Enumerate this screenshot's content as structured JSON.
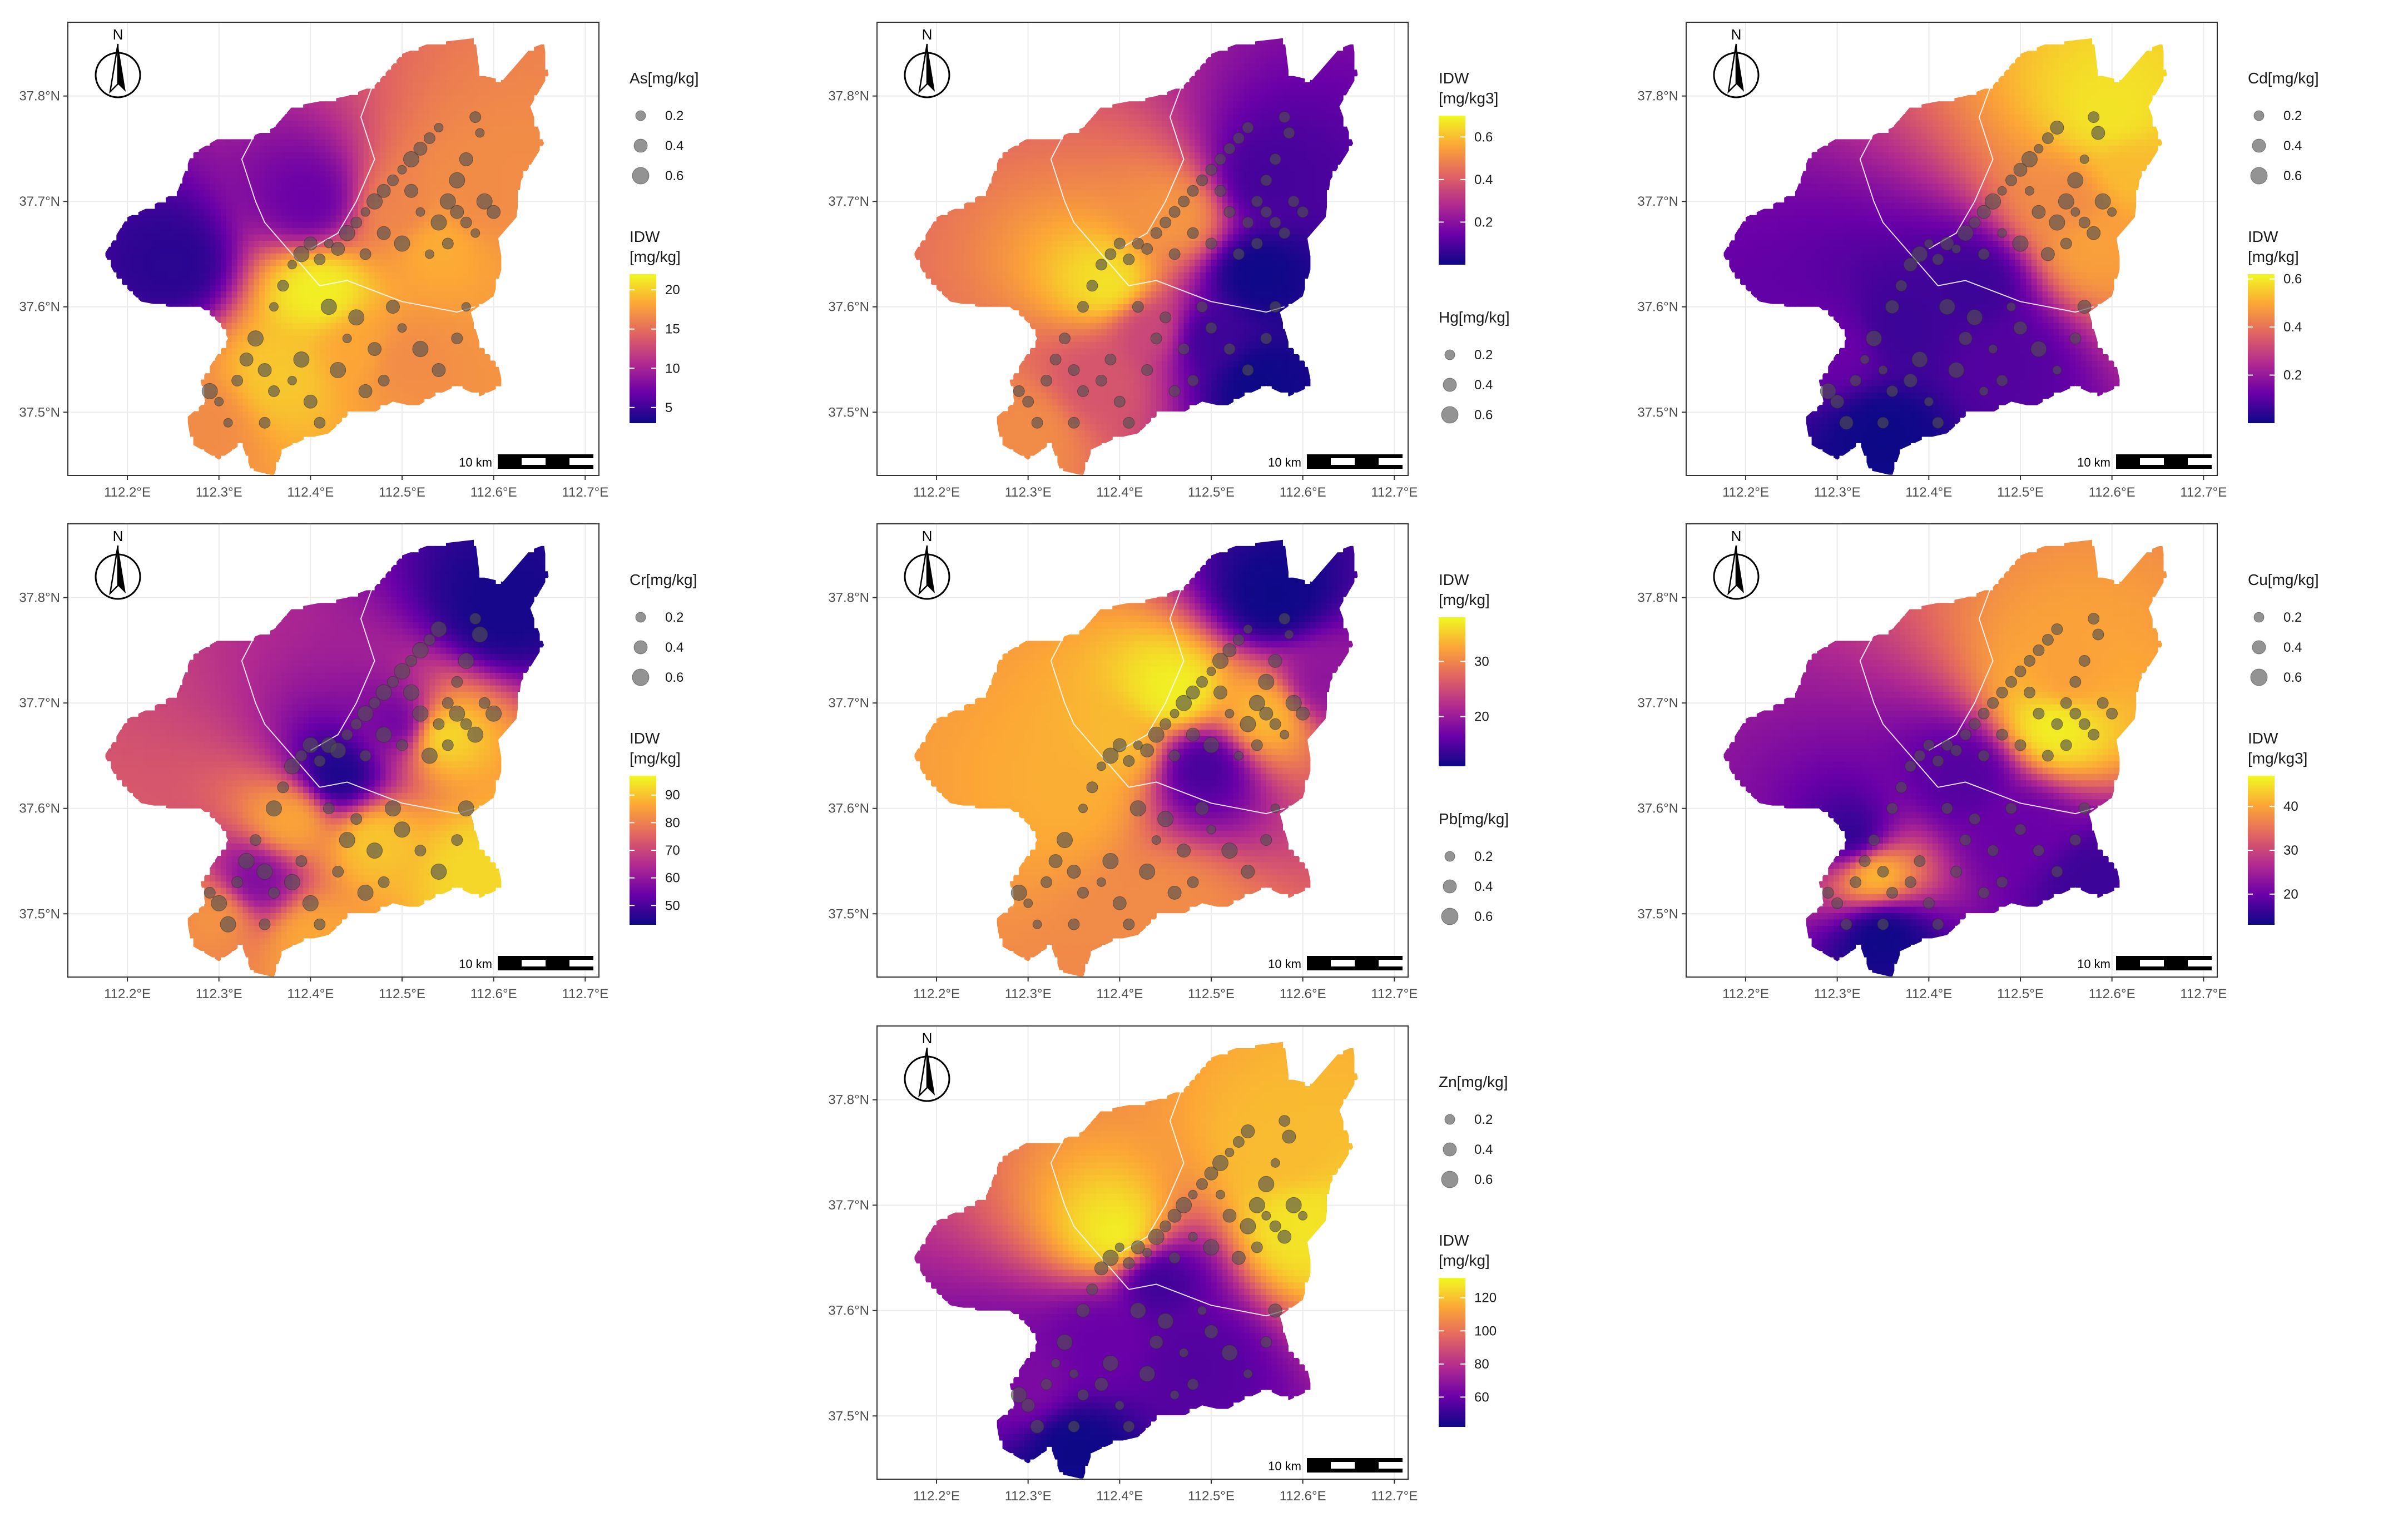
{
  "figure": {
    "type": "idw-interpolation-map-grid",
    "colormap": [
      "#0d0887",
      "#6a00a8",
      "#b12a90",
      "#e16462",
      "#fca636",
      "#f0f921"
    ],
    "dot_color": "#505050",
    "north_label": "N",
    "scalebar_label": "10 km",
    "lon_ticks": [
      "112.2°E",
      "112.3°E",
      "112.4°E",
      "112.5°E",
      "112.6°E",
      "112.7°E"
    ],
    "lat_ticks": [
      "37.5°N",
      "37.6°N",
      "37.7°N",
      "37.8°N"
    ],
    "size_legend_values": [
      "0.2",
      "0.4",
      "0.6"
    ]
  },
  "chart_data": [
    {
      "type": "heatmap",
      "element": "As",
      "size_legend_title": "As[mg/kg]",
      "fill_legend_title_lines": [
        "IDW",
        "[mg/kg]"
      ],
      "fill_ticks": [
        5,
        10,
        15,
        20
      ],
      "fill_range": [
        3,
        22
      ],
      "legend_order": "size-first",
      "hotspots": [
        {
          "lon": 112.41,
          "lat": 37.615,
          "v": 0.98
        },
        {
          "lon": 112.37,
          "lat": 37.535,
          "v": 0.88
        },
        {
          "lon": 112.45,
          "lat": 37.56,
          "v": 0.8
        },
        {
          "lon": 112.54,
          "lat": 37.66,
          "v": 0.82
        },
        {
          "lon": 112.5,
          "lat": 37.69,
          "v": 0.7
        },
        {
          "lon": 112.58,
          "lat": 37.7,
          "v": 0.72
        },
        {
          "lon": 112.5,
          "lat": 37.55,
          "v": 0.72
        },
        {
          "lon": 112.28,
          "lat": 37.49,
          "v": 0.72
        },
        {
          "lon": 112.25,
          "lat": 37.64,
          "v": 0.06
        },
        {
          "lon": 112.4,
          "lat": 37.7,
          "v": 0.2
        }
      ]
    },
    {
      "type": "heatmap",
      "element": "Hg",
      "size_legend_title": "Hg[mg/kg]",
      "fill_legend_title_lines": [
        "IDW",
        "[mg/kg3]"
      ],
      "fill_ticks": [
        0.2,
        0.4,
        0.6
      ],
      "fill_range": [
        0.0,
        0.7
      ],
      "legend_order": "fill-first",
      "hotspots": [
        {
          "lon": 112.39,
          "lat": 37.62,
          "v": 0.95
        },
        {
          "lon": 112.46,
          "lat": 37.685,
          "v": 0.75
        },
        {
          "lon": 112.3,
          "lat": 37.48,
          "v": 0.72
        },
        {
          "lon": 112.43,
          "lat": 37.58,
          "v": 0.5
        },
        {
          "lon": 112.38,
          "lat": 37.53,
          "v": 0.55
        },
        {
          "lon": 112.55,
          "lat": 37.63,
          "v": 0.0
        },
        {
          "lon": 112.55,
          "lat": 37.53,
          "v": 0.0
        },
        {
          "lon": 112.5,
          "lat": 37.57,
          "v": 0.1
        },
        {
          "lon": 112.56,
          "lat": 37.72,
          "v": 0.12
        }
      ]
    },
    {
      "type": "heatmap",
      "element": "Cd",
      "size_legend_title": "Cd[mg/kg]",
      "fill_legend_title_lines": [
        "IDW",
        "[mg/kg]"
      ],
      "fill_ticks": [
        0.2,
        0.4,
        0.6
      ],
      "fill_range": [
        0.0,
        0.62
      ],
      "legend_order": "size-first",
      "hotspots": [
        {
          "lon": 112.6,
          "lat": 37.78,
          "v": 0.95
        },
        {
          "lon": 112.62,
          "lat": 37.73,
          "v": 0.85
        },
        {
          "lon": 112.55,
          "lat": 37.7,
          "v": 0.72
        },
        {
          "lon": 112.58,
          "lat": 37.66,
          "v": 0.78
        },
        {
          "lon": 112.35,
          "lat": 37.48,
          "v": 0.0
        },
        {
          "lon": 112.45,
          "lat": 37.62,
          "v": 0.1
        },
        {
          "lon": 112.37,
          "lat": 37.58,
          "v": 0.1
        },
        {
          "lon": 112.48,
          "lat": 37.55,
          "v": 0.15
        },
        {
          "lon": 112.3,
          "lat": 37.56,
          "v": 0.2
        }
      ]
    },
    {
      "type": "heatmap",
      "element": "Cr",
      "size_legend_title": "Cr[mg/kg]",
      "fill_legend_title_lines": [
        "IDW",
        "[mg/kg]"
      ],
      "fill_ticks": [
        50,
        60,
        70,
        80,
        90
      ],
      "fill_range": [
        43,
        97
      ],
      "legend_order": "size-first",
      "hotspots": [
        {
          "lon": 112.61,
          "lat": 37.79,
          "v": 0.02
        },
        {
          "lon": 112.43,
          "lat": 37.63,
          "v": 0.02
        },
        {
          "lon": 112.5,
          "lat": 37.68,
          "v": 0.2
        },
        {
          "lon": 112.54,
          "lat": 37.67,
          "v": 0.95
        },
        {
          "lon": 112.58,
          "lat": 37.54,
          "v": 0.92
        },
        {
          "lon": 112.47,
          "lat": 37.57,
          "v": 0.88
        },
        {
          "lon": 112.38,
          "lat": 37.59,
          "v": 0.8
        },
        {
          "lon": 112.3,
          "lat": 37.5,
          "v": 0.75
        },
        {
          "lon": 112.4,
          "lat": 37.48,
          "v": 0.8
        },
        {
          "lon": 112.34,
          "lat": 37.53,
          "v": 0.25
        }
      ]
    },
    {
      "type": "heatmap",
      "element": "Pb",
      "size_legend_title": "Pb[mg/kg]",
      "fill_legend_title_lines": [
        "IDW",
        "[mg/kg]"
      ],
      "fill_ticks": [
        20,
        30
      ],
      "fill_range": [
        11,
        38
      ],
      "legend_order": "fill-first",
      "hotspots": [
        {
          "lon": 112.46,
          "lat": 37.71,
          "v": 0.98
        },
        {
          "lon": 112.4,
          "lat": 37.66,
          "v": 0.85
        },
        {
          "lon": 112.35,
          "lat": 37.62,
          "v": 0.82
        },
        {
          "lon": 112.56,
          "lat": 37.69,
          "v": 0.85
        },
        {
          "lon": 112.57,
          "lat": 37.8,
          "v": 0.0
        },
        {
          "lon": 112.49,
          "lat": 37.64,
          "v": 0.12
        },
        {
          "lon": 112.62,
          "lat": 37.72,
          "v": 0.3
        },
        {
          "lon": 112.45,
          "lat": 37.5,
          "v": 0.72
        }
      ]
    },
    {
      "type": "heatmap",
      "element": "Cu",
      "size_legend_title": "Cu[mg/kg]",
      "fill_legend_title_lines": [
        "IDW",
        "[mg/kg3]"
      ],
      "fill_ticks": [
        20,
        30,
        40
      ],
      "fill_range": [
        13,
        47
      ],
      "legend_order": "size-first",
      "hotspots": [
        {
          "lon": 112.54,
          "lat": 37.68,
          "v": 0.98
        },
        {
          "lon": 112.55,
          "lat": 37.72,
          "v": 0.78
        },
        {
          "lon": 112.34,
          "lat": 37.54,
          "v": 0.88
        },
        {
          "lon": 112.35,
          "lat": 37.48,
          "v": 0.0
        },
        {
          "lon": 112.32,
          "lat": 37.57,
          "v": 0.05
        },
        {
          "lon": 112.44,
          "lat": 37.63,
          "v": 0.15
        },
        {
          "lon": 112.58,
          "lat": 37.53,
          "v": 0.1
        },
        {
          "lon": 112.5,
          "lat": 37.58,
          "v": 0.2
        }
      ]
    },
    {
      "type": "heatmap",
      "element": "Zn",
      "size_legend_title": "Zn[mg/kg]",
      "fill_legend_title_lines": [
        "IDW",
        "[mg/kg]"
      ],
      "fill_ticks": [
        60,
        80,
        100,
        120
      ],
      "fill_range": [
        42,
        132
      ],
      "legend_order": "size-first",
      "hotspots": [
        {
          "lon": 112.4,
          "lat": 37.67,
          "v": 0.98
        },
        {
          "lon": 112.6,
          "lat": 37.68,
          "v": 0.95
        },
        {
          "lon": 112.58,
          "lat": 37.75,
          "v": 0.85
        },
        {
          "lon": 112.35,
          "lat": 37.47,
          "v": 0.0
        },
        {
          "lon": 112.44,
          "lat": 37.63,
          "v": 0.1
        },
        {
          "lon": 112.48,
          "lat": 37.55,
          "v": 0.15
        },
        {
          "lon": 112.38,
          "lat": 37.57,
          "v": 0.2
        },
        {
          "lon": 112.3,
          "lat": 37.53,
          "v": 0.25
        }
      ]
    }
  ]
}
